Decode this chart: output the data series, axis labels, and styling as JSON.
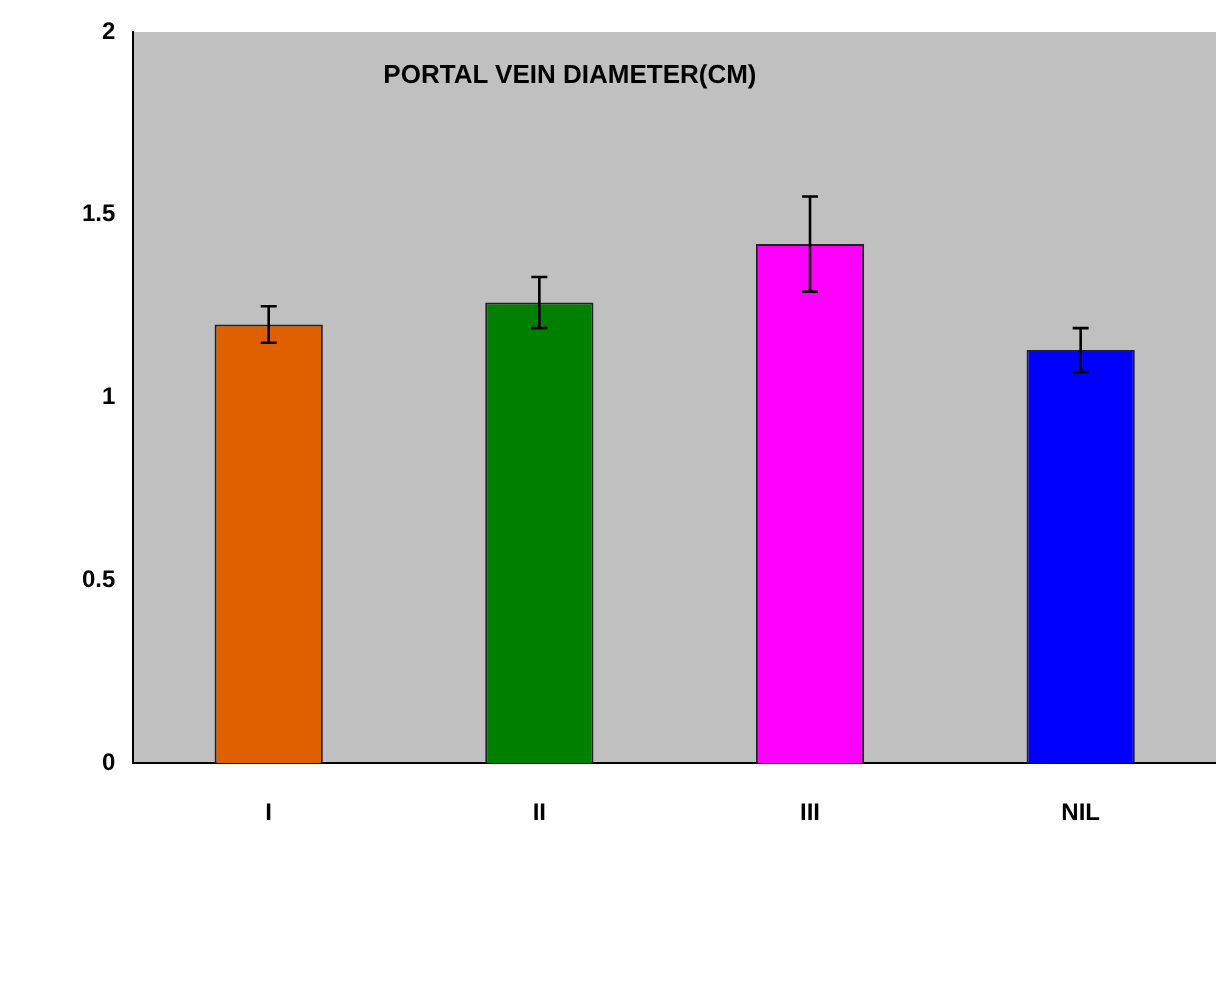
{
  "chart_data": {
    "type": "bar",
    "title": "PORTAL VEIN DIAMETER(CM)",
    "categories": [
      "I",
      "II",
      "III",
      "NIL"
    ],
    "values": [
      1.2,
      1.26,
      1.42,
      1.13
    ],
    "errors": [
      0.05,
      0.07,
      0.13,
      0.06
    ],
    "colors": [
      "#e06000",
      "#008000",
      "#ff00ff",
      "#0000ff"
    ],
    "ylim": [
      0,
      2
    ],
    "yticks": [
      0,
      0.5,
      1,
      1.5,
      2
    ],
    "grid": false,
    "legend": false
  }
}
